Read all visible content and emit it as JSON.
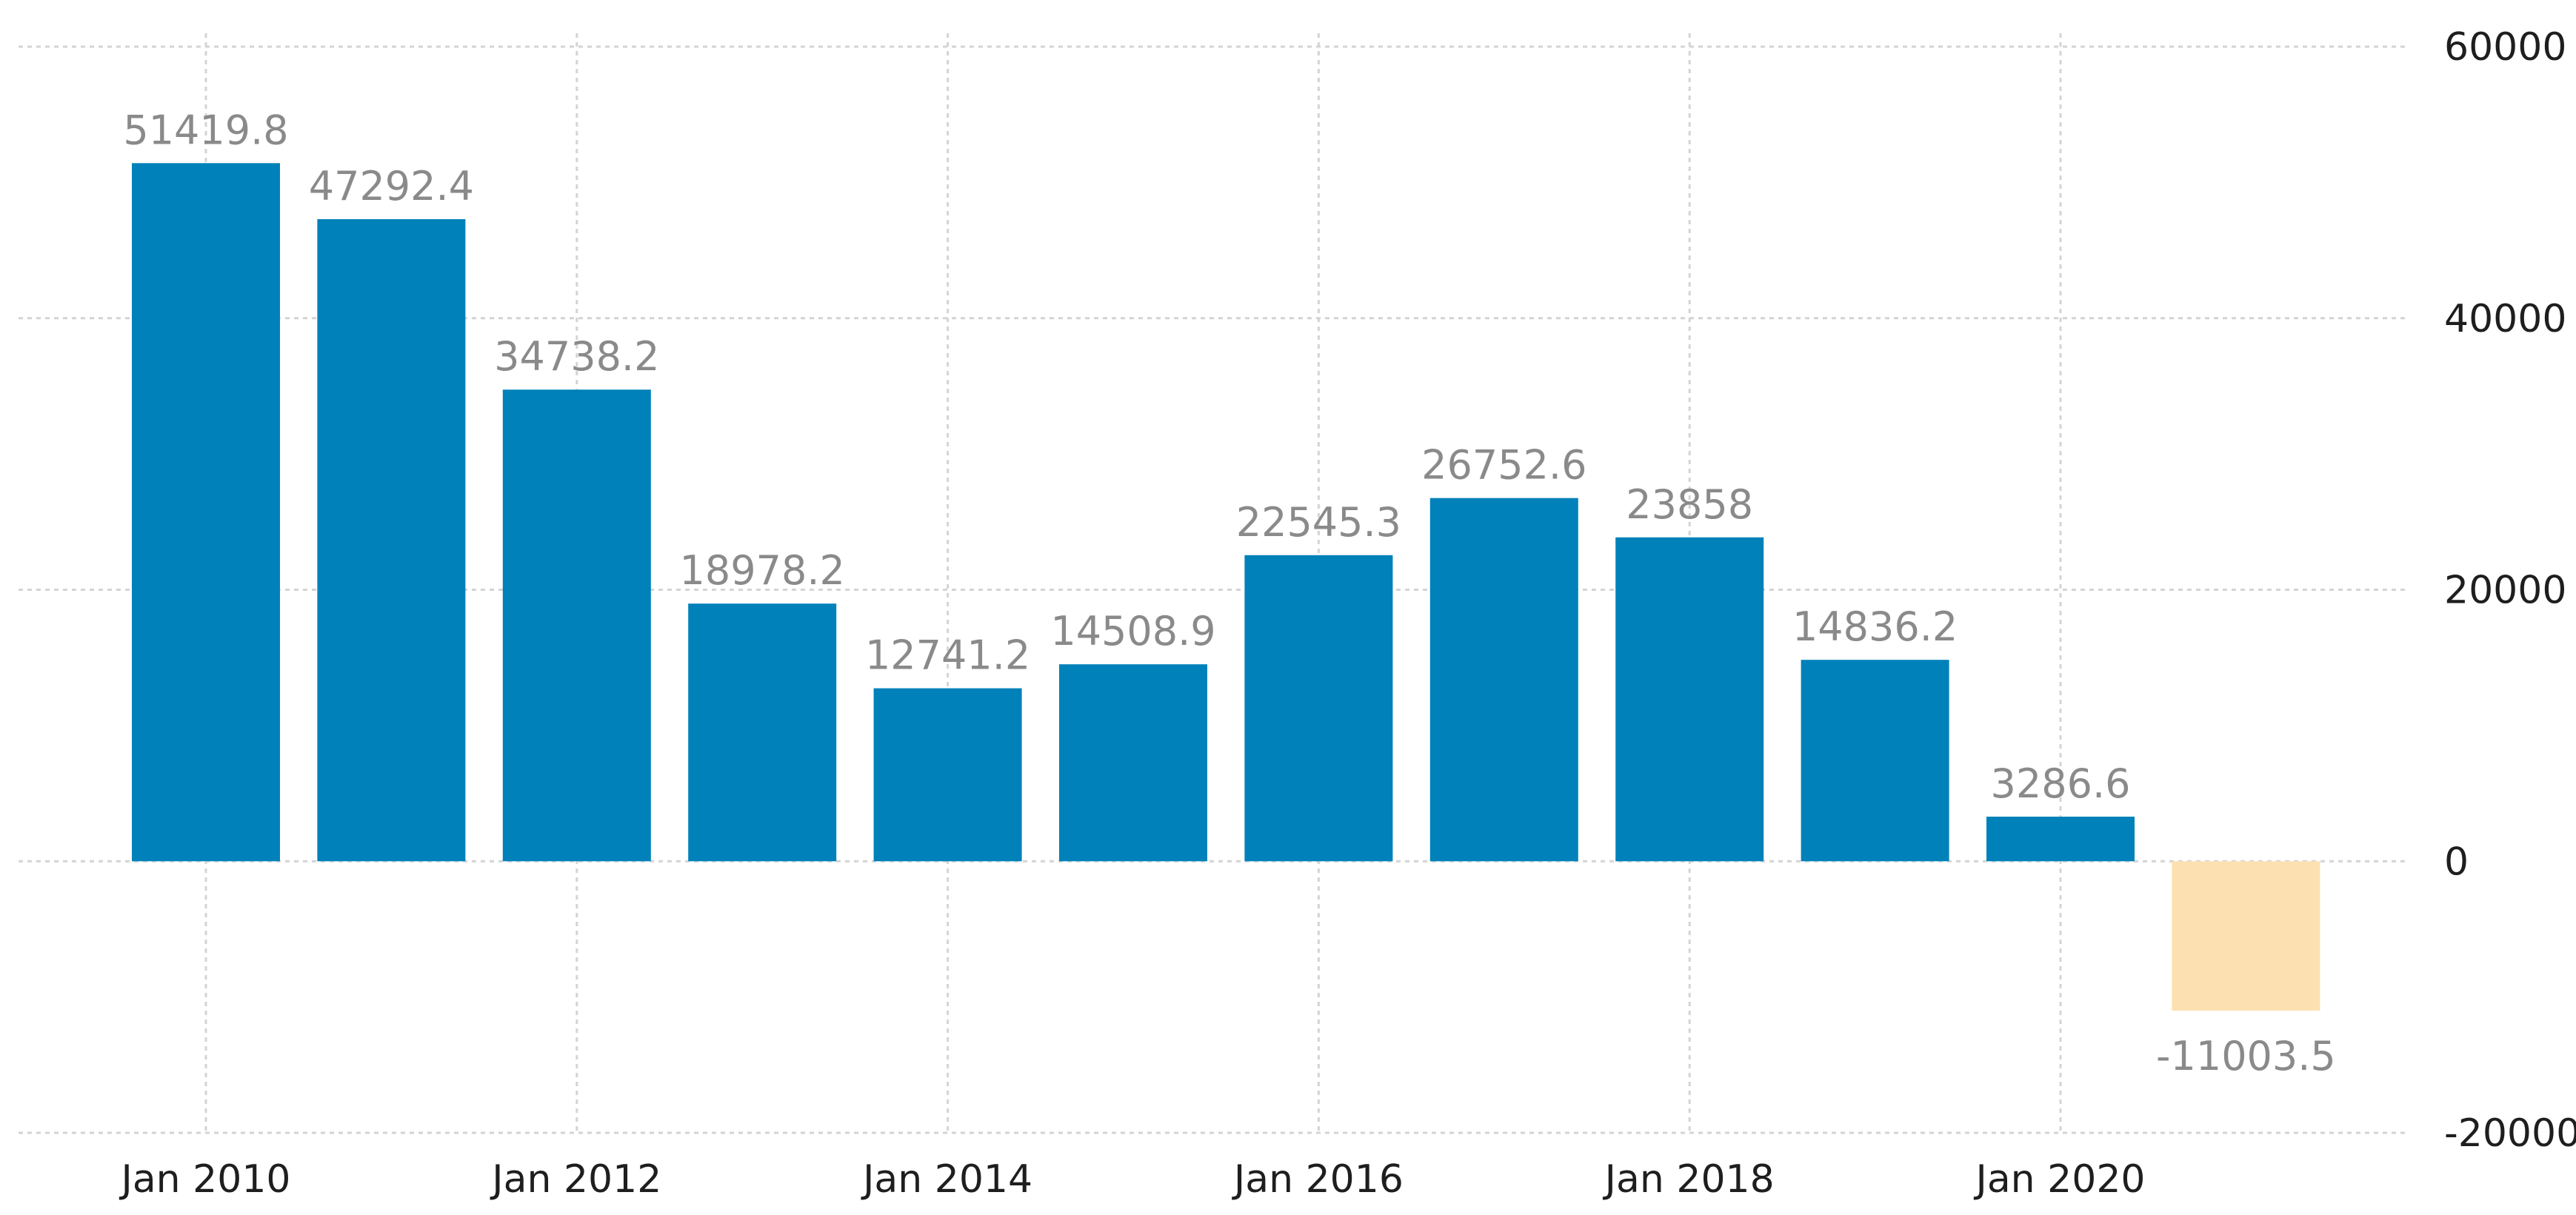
{
  "chart_data": {
    "type": "bar",
    "title": "",
    "xlabel": "",
    "ylabel": "",
    "categories": [
      "2010",
      "2011",
      "2012",
      "2013",
      "2014",
      "2015",
      "2016",
      "2017",
      "2018",
      "2019",
      "2020",
      "2021"
    ],
    "values": [
      51419.8,
      47292.4,
      34738.2,
      18978.2,
      12741.2,
      14508.9,
      22545.3,
      26752.6,
      23858,
      14836.2,
      3286.6,
      -11003.5
    ],
    "data_labels": [
      "51419.8",
      "47292.4",
      "34738.2",
      "18978.2",
      "12741.2",
      "14508.9",
      "22545.3",
      "26752.6",
      "23858",
      "14836.2",
      "3286.6",
      "-11003.5"
    ],
    "x_tick_labels": [
      "Jan 2010",
      "Jan 2012",
      "Jan 2014",
      "Jan 2016",
      "Jan 2018",
      "Jan 2020"
    ],
    "y_ticks": [
      60000,
      40000,
      20000,
      0,
      -20000
    ],
    "y_tick_labels": [
      "60000",
      "40000",
      "20000",
      "0",
      "-20000"
    ],
    "ylim": [
      -20000,
      60000
    ],
    "y_axis_position": "right",
    "grid": true,
    "legend": "none",
    "colors": {
      "positive": "#0081b9",
      "negative": "#fde0b2",
      "grid": "#d4d4d4",
      "data_label": "#8a8a8a",
      "tick_label": "#1e1e1e"
    }
  }
}
